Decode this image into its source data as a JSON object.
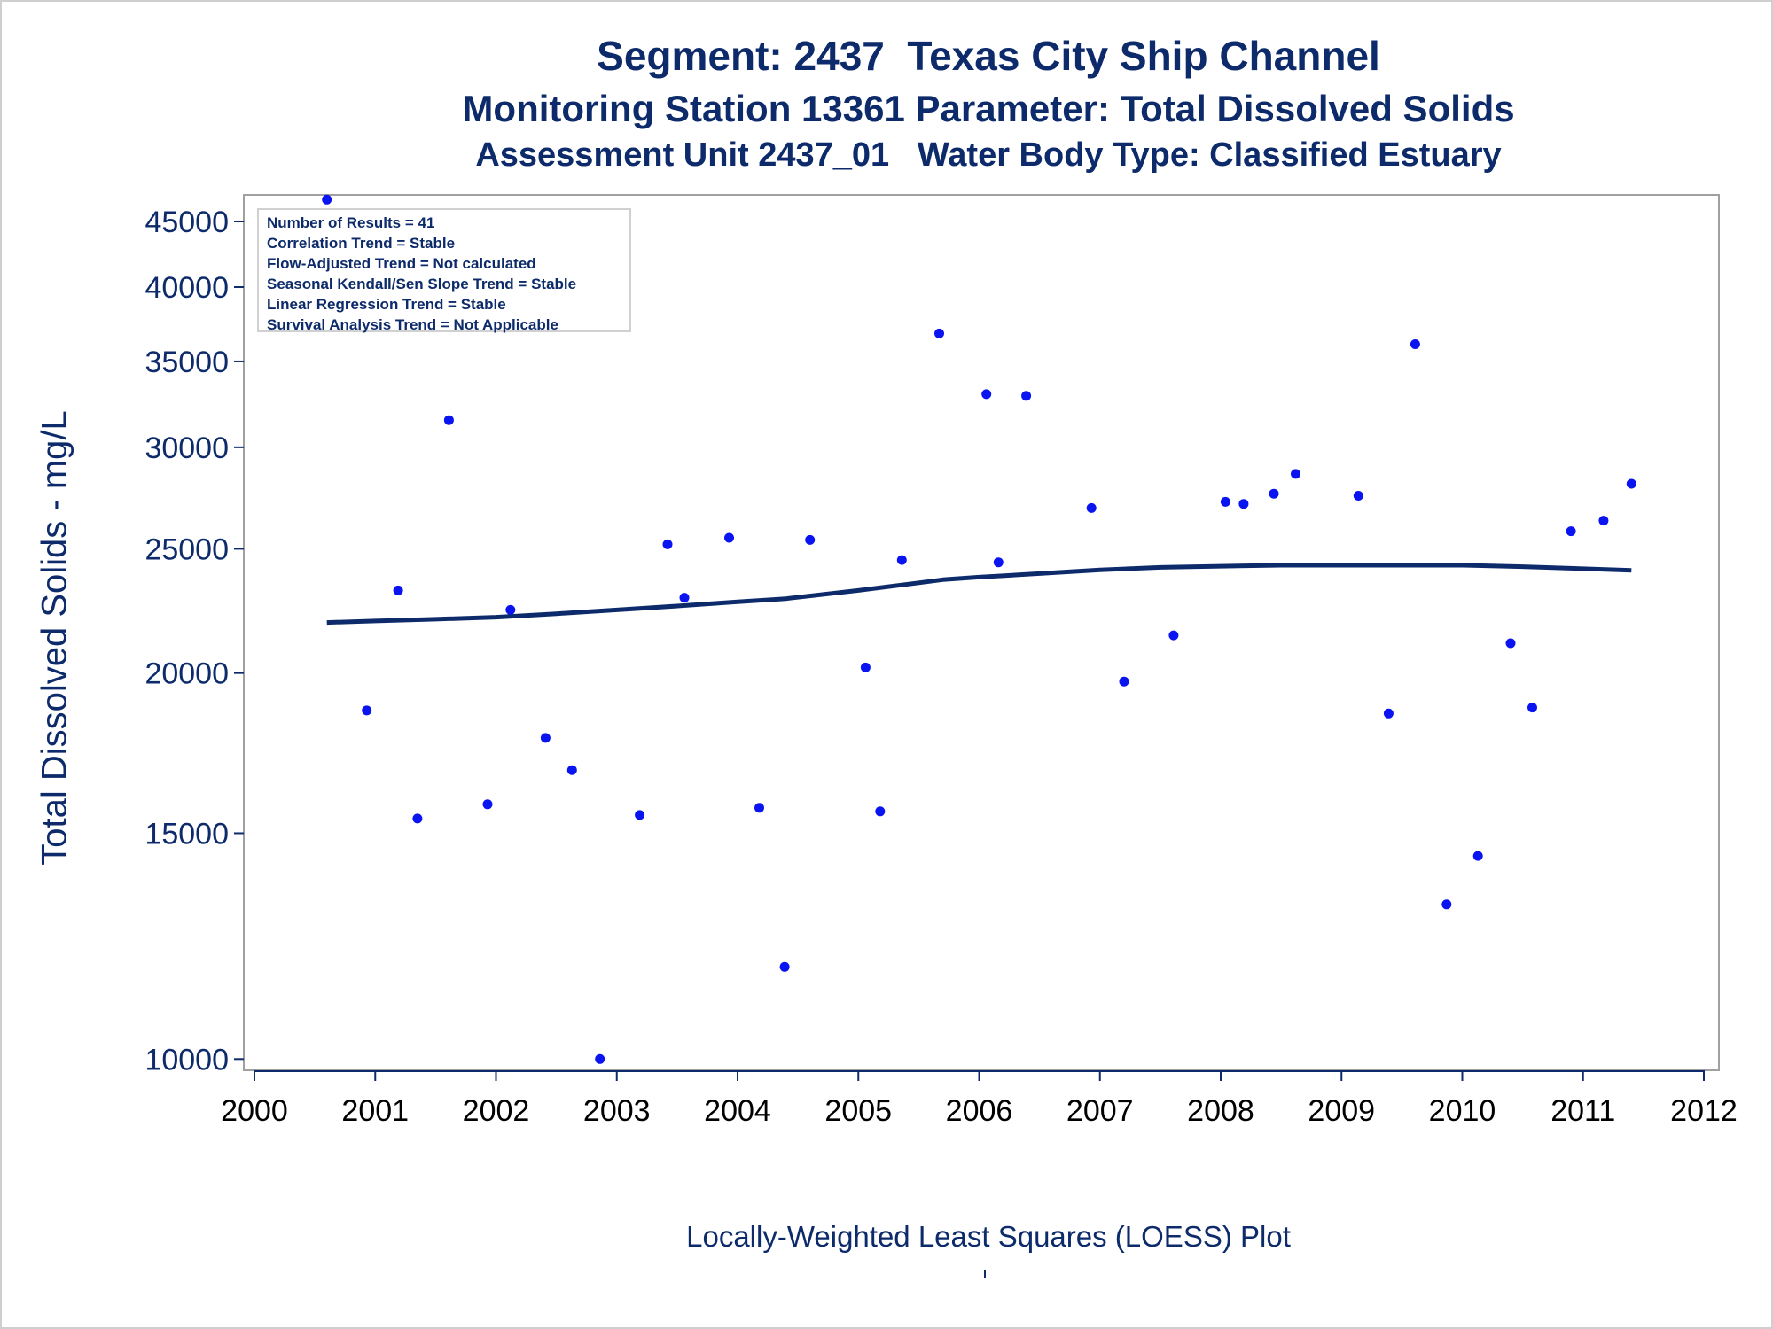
{
  "chart_data": {
    "type": "scatter",
    "title": "Segment: 2437  Texas City Ship Channel",
    "subtitle": "Monitoring Station 13361 Parameter: Total Dissolved Solids",
    "subtitle2": "Assessment Unit 2437_01   Water Body Type: Classified Estuary",
    "xlabel": "",
    "ylabel": "Total Dissolved Solids - mg/L",
    "footnote": "Locally-Weighted Least Squares (LOESS) Plot",
    "yscale": "log",
    "xlim": [
      2000,
      2012
    ],
    "ylim": [
      9800,
      47200
    ],
    "x_ticks": [
      "2000",
      "2001",
      "2002",
      "2003",
      "2004",
      "2005",
      "2006",
      "2007",
      "2008",
      "2009",
      "2010",
      "2011",
      "2012"
    ],
    "y_ticks": [
      10000,
      15000,
      20000,
      25000,
      30000,
      35000,
      40000,
      45000
    ],
    "grid": false,
    "stats_box": [
      "Number of Results = 41",
      "Correlation Trend = Stable",
      "Flow-Adjusted Trend = Not calculated",
      "Seasonal Kendall/Sen Slope Trend = Stable",
      "Linear Regression Trend = Stable",
      "Survival Analysis Trend = Not Applicable"
    ],
    "colors": {
      "points": "#0a14f0",
      "loess": "#0d2b6b",
      "text": "#0d2b6b"
    },
    "series": [
      {
        "type": "scatter",
        "x": [
          2000.6,
          2000.93,
          2001.19,
          2001.35,
          2001.61,
          2001.93,
          2002.12,
          2002.41,
          2002.63,
          2002.86,
          2003.19,
          2003.42,
          2003.56,
          2003.93,
          2004.18,
          2004.39,
          2004.6,
          2005.06,
          2005.18,
          2005.36,
          2005.67,
          2006.06,
          2006.16,
          2006.39,
          2006.93,
          2007.2,
          2007.61,
          2008.04,
          2008.19,
          2008.44,
          2008.62,
          2009.14,
          2009.39,
          2009.61,
          2009.87,
          2010.13,
          2010.4,
          2010.58,
          2010.9,
          2011.17,
          2011.4
        ],
        "y": [
          46800,
          18700,
          23200,
          15400,
          31500,
          15800,
          22400,
          17800,
          16800,
          10000,
          15500,
          25200,
          22900,
          25500,
          15700,
          11800,
          25400,
          20200,
          15600,
          24500,
          36800,
          33000,
          24400,
          32900,
          26900,
          19700,
          21400,
          27200,
          27100,
          27600,
          28600,
          27500,
          18600,
          36100,
          13200,
          14400,
          21100,
          18800,
          25800,
          26300,
          28100
        ]
      },
      {
        "type": "line",
        "name": "LOESS",
        "x": [
          2000.6,
          2001.0,
          2001.5,
          2002.0,
          2002.5,
          2003.0,
          2003.5,
          2004.0,
          2004.4,
          2005.0,
          2005.5,
          2005.7,
          2006.0,
          2006.5,
          2007.0,
          2007.5,
          2008.0,
          2008.5,
          2009.0,
          2009.5,
          2010.0,
          2010.5,
          2011.0,
          2011.4
        ],
        "y": [
          21900,
          21960,
          22030,
          22110,
          22250,
          22400,
          22560,
          22730,
          22860,
          23200,
          23520,
          23650,
          23760,
          23910,
          24070,
          24180,
          24230,
          24270,
          24270,
          24270,
          24270,
          24210,
          24120,
          24050
        ]
      }
    ]
  }
}
